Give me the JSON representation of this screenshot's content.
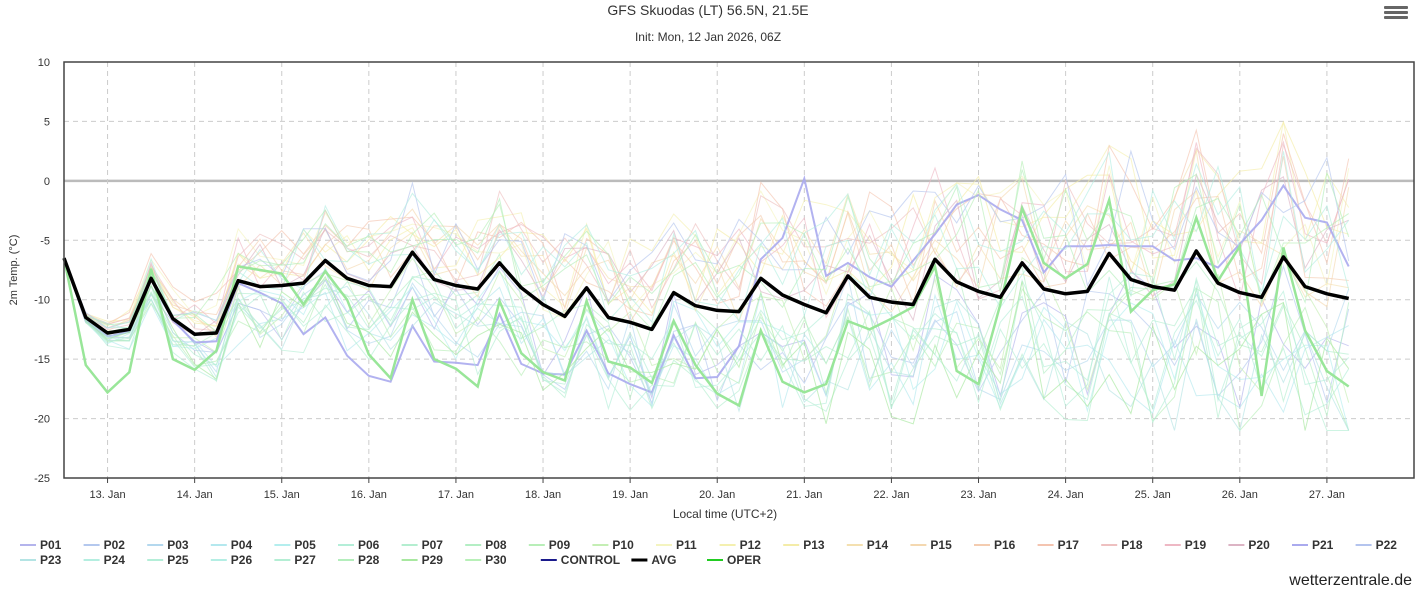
{
  "chart_data": {
    "type": "line",
    "title": "GFS Skuodas (LT) 56.5N, 21.5E",
    "subtitle": "Init: Mon, 12 Jan 2026, 06Z",
    "ylabel": "2m Temp. (°C)",
    "xlabel": "Local time (UTC+2)",
    "ylim": [
      -25,
      10
    ],
    "yticks": [
      10,
      5,
      0,
      -5,
      -10,
      -15,
      -20,
      -25
    ],
    "x_start_days": 0.5,
    "x_step_days": 0.25,
    "xlim_days": [
      0.5,
      16.0
    ],
    "xticks": [
      {
        "day": 1,
        "label": "13. Jan"
      },
      {
        "day": 2,
        "label": "14. Jan"
      },
      {
        "day": 3,
        "label": "15. Jan"
      },
      {
        "day": 4,
        "label": "16. Jan"
      },
      {
        "day": 5,
        "label": "17. Jan"
      },
      {
        "day": 6,
        "label": "18. Jan"
      },
      {
        "day": 7,
        "label": "19. Jan"
      },
      {
        "day": 8,
        "label": "20. Jan"
      },
      {
        "day": 9,
        "label": "21. Jan"
      },
      {
        "day": 10,
        "label": "22. Jan"
      },
      {
        "day": 11,
        "label": "23. Jan"
      },
      {
        "day": 12,
        "label": "24. Jan"
      },
      {
        "day": 13,
        "label": "25. Jan"
      },
      {
        "day": 14,
        "label": "26. Jan"
      },
      {
        "day": 15,
        "label": "27. Jan"
      }
    ],
    "avg": [
      -6.5,
      -11.5,
      -12.8,
      -12.5,
      -8.2,
      -11.6,
      -12.9,
      -12.8,
      -8.4,
      -8.9,
      -8.8,
      -8.6,
      -6.7,
      -8.2,
      -8.8,
      -8.9,
      -6.0,
      -8.3,
      -8.8,
      -9.1,
      -6.9,
      -9.0,
      -10.4,
      -11.4,
      -9.0,
      -11.5,
      -11.9,
      -12.5,
      -9.4,
      -10.5,
      -10.9,
      -11.0,
      -8.2,
      -9.6,
      -10.4,
      -11.1,
      -8.0,
      -9.8,
      -10.2,
      -10.4,
      -6.6,
      -8.5,
      -9.3,
      -9.8,
      -6.9,
      -9.1,
      -9.5,
      -9.3,
      -6.1,
      -8.3,
      -8.9,
      -9.2,
      -5.9,
      -8.6,
      -9.4,
      -9.8,
      -6.4,
      -8.9,
      -9.5,
      -9.9
    ],
    "oper": [
      -6.5,
      -15.5,
      -17.8,
      -16.1,
      -7.4,
      -15.0,
      -15.9,
      -14.3,
      -7.2,
      -7.5,
      -7.8,
      -10.4,
      -7.6,
      -10.0,
      -14.6,
      -16.6,
      -10.0,
      -15.0,
      -15.8,
      -17.3,
      -10.1,
      -14.5,
      -16.1,
      -16.8,
      -10.1,
      -15.2,
      -15.7,
      -17.0,
      -11.8,
      -15.5,
      -17.9,
      -18.9,
      -12.6,
      -16.9,
      -17.8,
      -17.1,
      -11.8,
      -12.5,
      -11.6,
      -10.6,
      -7.2,
      -16.0,
      -17.1,
      -10.4,
      -2.3,
      -6.9,
      -8.2,
      -7.0,
      -1.6,
      -11.0,
      -9.2,
      -8.7,
      -3.1,
      -8.4,
      -5.5,
      -18.1,
      -5.6,
      -12.6,
      -16.0,
      -17.3
    ],
    "highlight_member": {
      "name": "P21",
      "color": "#aaaaee",
      "values": [
        -6.5,
        -11.8,
        -13.1,
        -12.7,
        -8.3,
        -11.7,
        -13.6,
        -13.5,
        -8.6,
        -9.4,
        -10.3,
        -12.9,
        -11.5,
        -14.7,
        -16.4,
        -16.9,
        -12.2,
        -15.2,
        -15.3,
        -15.5,
        -11.2,
        -15.4,
        -16.2,
        -16.3,
        -12.6,
        -16.2,
        -17.1,
        -17.8,
        -13.0,
        -16.6,
        -16.5,
        -13.9,
        -6.6,
        -4.8,
        0.2,
        -8.0,
        -6.9,
        -8.1,
        -8.9,
        -6.7,
        -4.5,
        -2.0,
        -1.2,
        -2.4,
        -3.3,
        -7.7,
        -5.5,
        -5.5,
        -5.4,
        -5.5,
        -5.5,
        -6.7,
        -6.5,
        -7.3,
        -5.3,
        -3.3,
        -0.4,
        -3.1,
        -3.5,
        -7.2
      ]
    },
    "series": [
      {
        "name": "P01",
        "color": "#b4b4ec"
      },
      {
        "name": "P02",
        "color": "#b4c8ee"
      },
      {
        "name": "P03",
        "color": "#b4d8ee"
      },
      {
        "name": "P04",
        "color": "#b4e8ee"
      },
      {
        "name": "P05",
        "color": "#b4eeee"
      },
      {
        "name": "P06",
        "color": "#b4eed8"
      },
      {
        "name": "P07",
        "color": "#b4eed0"
      },
      {
        "name": "P08",
        "color": "#b4eec4"
      },
      {
        "name": "P09",
        "color": "#b8eeb8"
      },
      {
        "name": "P10",
        "color": "#c4eeb4"
      },
      {
        "name": "P11",
        "color": "#f4f4c0"
      },
      {
        "name": "P12",
        "color": "#f4f0b0"
      },
      {
        "name": "P13",
        "color": "#f4eca8"
      },
      {
        "name": "P14",
        "color": "#f4e0b0"
      },
      {
        "name": "P15",
        "color": "#f4d8b0"
      },
      {
        "name": "P16",
        "color": "#f4ccb0"
      },
      {
        "name": "P17",
        "color": "#f4c4b0"
      },
      {
        "name": "P18",
        "color": "#eec0c0"
      },
      {
        "name": "P19",
        "color": "#eeb8c4"
      },
      {
        "name": "P20",
        "color": "#dcb4c4"
      },
      {
        "name": "P21",
        "color": "#aaaaee"
      },
      {
        "name": "P22",
        "color": "#b4c4ee"
      },
      {
        "name": "P23",
        "color": "#b4e4e4"
      },
      {
        "name": "P24",
        "color": "#b4eee0"
      },
      {
        "name": "P25",
        "color": "#b4eed8"
      },
      {
        "name": "P26",
        "color": "#b4eee4"
      },
      {
        "name": "P27",
        "color": "#b4eed4"
      },
      {
        "name": "P28",
        "color": "#b4eebc"
      },
      {
        "name": "P29",
        "color": "#a8e8a0"
      },
      {
        "name": "P30",
        "color": "#b8f0b8"
      },
      {
        "name": "CONTROL",
        "color": "#1a1a8c"
      },
      {
        "name": "AVG",
        "color": "#000000"
      },
      {
        "name": "OPER",
        "color": "#22cc22"
      }
    ]
  },
  "credit": "wetterzentrale.de",
  "colors": {
    "grid": "#cccccc",
    "zero_line": "#bbbbbb",
    "axis": "#444444"
  }
}
